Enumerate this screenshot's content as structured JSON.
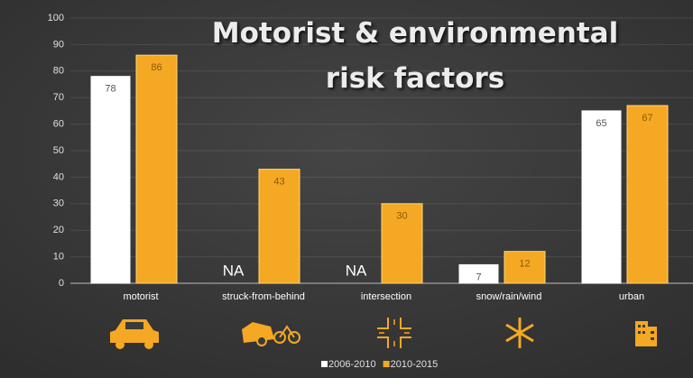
{
  "chart_data": {
    "type": "bar",
    "title": "Motorist & environmental risk factors",
    "categories": [
      "motorist",
      "struck-from-behind",
      "intersection",
      "snow/rain/wind",
      "urban"
    ],
    "series": [
      {
        "name": "2006-2010",
        "color": "#ffffff",
        "values": [
          78,
          null,
          null,
          7,
          65
        ],
        "value_labels": [
          "78",
          "NA",
          "NA",
          "7",
          "65"
        ]
      },
      {
        "name": "2010-2015",
        "color": "#f5a823",
        "values": [
          86,
          43,
          30,
          12,
          67
        ]
      }
    ],
    "ylim": [
      0,
      100
    ],
    "yticks": [
      0,
      10,
      20,
      30,
      40,
      50,
      60,
      70,
      80,
      90,
      100
    ],
    "grid": true,
    "legend": "bottom"
  }
}
